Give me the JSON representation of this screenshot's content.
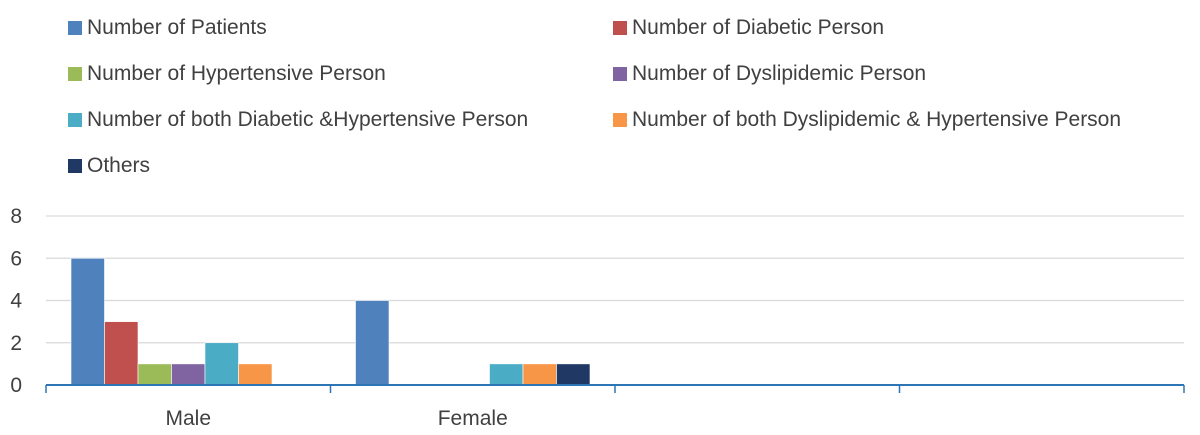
{
  "chart_data": {
    "type": "bar",
    "categories": [
      "Male",
      "Female",
      "",
      ""
    ],
    "series": [
      {
        "name": "Number of Patients",
        "color": "#4f81bd",
        "values": [
          6,
          4,
          null,
          null
        ]
      },
      {
        "name": "Number of Diabetic Person",
        "color": "#c0504d",
        "values": [
          3,
          null,
          null,
          null
        ]
      },
      {
        "name": "Number of Hypertensive Person",
        "color": "#9bbb59",
        "values": [
          1,
          null,
          null,
          null
        ]
      },
      {
        "name": "Number of Dyslipidemic Person",
        "color": "#8064a2",
        "values": [
          1,
          null,
          null,
          null
        ]
      },
      {
        "name": "Number of  both Diabetic  &Hypertensive Person",
        "color": "#4bacc6",
        "values": [
          2,
          1,
          null,
          null
        ]
      },
      {
        "name": "Number of both Dyslipidemic & Hypertensive Person",
        "color": "#f79646",
        "values": [
          1,
          1,
          null,
          null
        ]
      },
      {
        "name": "Others",
        "color": "#1f3864",
        "values": [
          null,
          1,
          null,
          null
        ]
      }
    ],
    "yticks": [
      "0",
      "2",
      "4",
      "6",
      "8"
    ],
    "ylim": [
      0,
      8
    ],
    "grid": true,
    "legend_position": "top"
  }
}
